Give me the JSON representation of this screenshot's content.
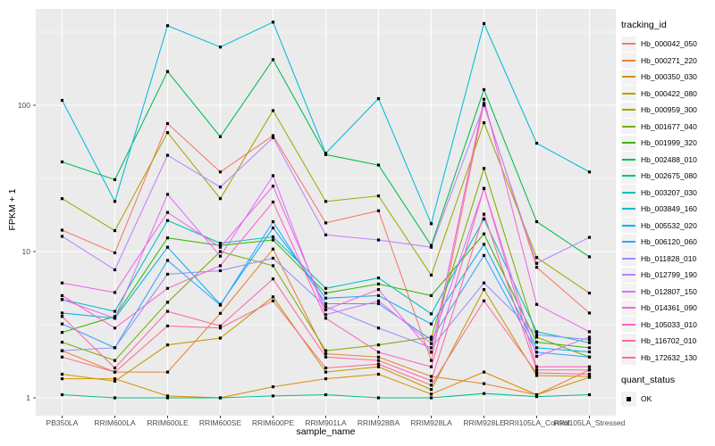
{
  "figure": {
    "x_axis_title": "sample_name",
    "y_axis_title": "FPKM + 1",
    "legend_tracking_title": "tracking_id",
    "legend_quant_title": "quant_status",
    "legend_quant_label": "OK",
    "panel_bg": "#EBEBEB",
    "grid_color": "#FFFFFF",
    "tick_color": "#333333",
    "tick_label_color": "#4D4D4D",
    "marker_color": "#000000"
  },
  "chart_data": {
    "type": "line",
    "xlabel": "sample_name",
    "ylabel": "FPKM + 1",
    "y_scale": "log10",
    "ylim": [
      0.76,
      455
    ],
    "y_ticks": [
      1,
      10,
      100
    ],
    "y_tick_labels": [
      "1",
      "10",
      "100"
    ],
    "y_minor_ticks": [
      3.162,
      31.62,
      316.2
    ],
    "grid": true,
    "legend_position": "right",
    "marker": "filled-square-black",
    "quant_status": "OK",
    "categories": [
      "PB350LA",
      "RRIM600LA",
      "RRIM600LE",
      "RRIM600SE",
      "RRIM600PE",
      "RRIM901LA",
      "RRIM928BA",
      "RRIM928LA",
      "RRIM928LE",
      "RRII105LA_Control",
      "RRII105LA_Stressed"
    ],
    "series": [
      {
        "name": "Hb_000042_050",
        "color": "#F8766D",
        "values": [
          14,
          9.8,
          75,
          35,
          62,
          15.7,
          19,
          1.8,
          103,
          7.8,
          3.8
        ]
      },
      {
        "name": "Hb_000271_220",
        "color": "#EA8331",
        "values": [
          2.1,
          1.5,
          1.5,
          3.78,
          10.4,
          2.0,
          1.9,
          1.4,
          1.25,
          1.05,
          1.55
        ]
      },
      {
        "name": "Hb_000350_030",
        "color": "#D89000",
        "values": [
          1.35,
          1.35,
          1.03,
          1.0,
          1.19,
          1.35,
          1.45,
          1.06,
          1.5,
          1.05,
          1.38
        ]
      },
      {
        "name": "Hb_000422_080",
        "color": "#C09B00",
        "values": [
          1.45,
          1.3,
          2.3,
          2.56,
          4.9,
          1.5,
          1.63,
          1.14,
          5.5,
          1.42,
          1.4
        ]
      },
      {
        "name": "Hb_000959_300",
        "color": "#A3A500",
        "values": [
          23,
          13.9,
          65,
          23,
          92,
          22,
          24,
          6.9,
          76,
          9.1,
          5.2
        ]
      },
      {
        "name": "Hb_001677_040",
        "color": "#7CAE00",
        "values": [
          2.4,
          1.8,
          4.5,
          10,
          8,
          2.1,
          2.3,
          2.6,
          37,
          2.6,
          1.9
        ]
      },
      {
        "name": "Hb_001999_320",
        "color": "#39B600",
        "values": [
          2.8,
          3.6,
          12.4,
          11,
          12,
          5.2,
          6.0,
          5.0,
          13.2,
          2.4,
          2.2
        ]
      },
      {
        "name": "Hb_002488_010",
        "color": "#00BB4E",
        "values": [
          41,
          31,
          170,
          61,
          205,
          46,
          39,
          11,
          128,
          16,
          9.2
        ]
      },
      {
        "name": "Hb_002675_080",
        "color": "#00C087",
        "values": [
          1.05,
          1.0,
          1.0,
          1.0,
          1.03,
          1.05,
          1.0,
          1.0,
          1.07,
          1.02,
          1.05
        ]
      },
      {
        "name": "Hb_003207_030",
        "color": "#00C0BB",
        "values": [
          4.7,
          3.9,
          16.3,
          11.4,
          12.6,
          5.6,
          6.6,
          3.75,
          16.7,
          2.83,
          2.38
        ]
      },
      {
        "name": "Hb_003849_160",
        "color": "#00BBDA",
        "values": [
          108,
          22,
          350,
          250,
          370,
          47,
          111,
          15.5,
          362,
          55,
          35
        ]
      },
      {
        "name": "Hb_005532_020",
        "color": "#00B0F6",
        "values": [
          3.8,
          3.5,
          10.7,
          4.35,
          14.5,
          4.8,
          5.0,
          3.2,
          11.2,
          2.2,
          2.06
        ]
      },
      {
        "name": "Hb_006120_060",
        "color": "#35A2FF",
        "values": [
          3.2,
          2.2,
          8.7,
          4.3,
          16,
          4.4,
          4.4,
          2.5,
          9.4,
          2.05,
          1.9
        ]
      },
      {
        "name": "Hb_011828_010",
        "color": "#9590FF",
        "values": [
          2.1,
          2.2,
          7.0,
          7.4,
          9,
          4.2,
          3.0,
          2.2,
          6.1,
          2.7,
          2.5
        ]
      },
      {
        "name": "Hb_012799_190",
        "color": "#BE80FF",
        "values": [
          12.7,
          7.5,
          45.5,
          27.6,
          60,
          13,
          12,
          10.7,
          100,
          8.3,
          12.5
        ]
      },
      {
        "name": "Hb_012807_150",
        "color": "#DB72FA",
        "values": [
          4.7,
          3.5,
          24.6,
          9.3,
          33,
          3.7,
          4.6,
          2.35,
          27,
          1.92,
          2.6
        ]
      },
      {
        "name": "Hb_014361_090",
        "color": "#F264E5",
        "values": [
          6.1,
          5.25,
          18.5,
          10.7,
          28,
          4.0,
          5.5,
          2.05,
          110,
          4.35,
          2.83
        ]
      },
      {
        "name": "Hb_105033_010",
        "color": "#FF61C7",
        "values": [
          5.0,
          3.0,
          5.6,
          8.0,
          21.8,
          3.5,
          2.05,
          1.63,
          27,
          1.63,
          1.63
        ]
      },
      {
        "name": "Hb_116702_010",
        "color": "#FF66A8",
        "values": [
          3.6,
          1.6,
          3.9,
          3.1,
          6.5,
          1.9,
          1.8,
          1.31,
          18,
          1.55,
          1.55
        ]
      },
      {
        "name": "Hb_172632_130",
        "color": "#FF6C91",
        "values": [
          1.9,
          1.5,
          3.1,
          3.0,
          4.6,
          1.6,
          1.7,
          1.22,
          4.6,
          1.48,
          1.45
        ]
      }
    ]
  }
}
